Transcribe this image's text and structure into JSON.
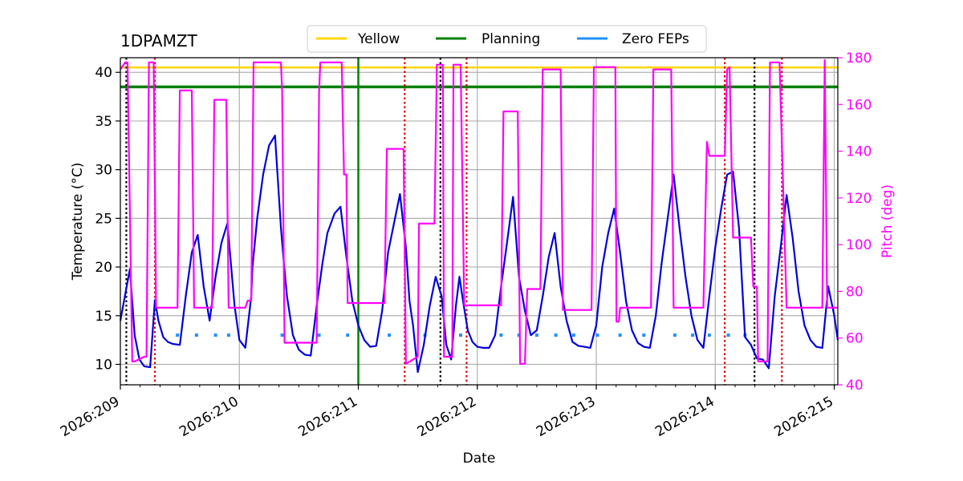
{
  "chart_data": {
    "type": "line",
    "title": "1DPAMZT",
    "xlabel": "Date",
    "ylabel": "Temperature ($^\\circ$C)",
    "ylabel_display": "Temperature (°C)",
    "y2label": "Pitch (deg)",
    "xlim": [
      209.0,
      215.03
    ],
    "ylim": [
      7.9,
      41.5
    ],
    "y2lim": [
      40,
      180
    ],
    "grid": true,
    "legend_placement": "top-center",
    "x_ticks": [
      209,
      210,
      211,
      212,
      213,
      214,
      215
    ],
    "x_tick_labels": [
      "2026:209",
      "2026:210",
      "2026:211",
      "2026:212",
      "2026:213",
      "2026:214",
      "2026:215"
    ],
    "y_ticks": [
      10,
      15,
      20,
      25,
      30,
      35,
      40
    ],
    "y_tick_labels": [
      "10",
      "15",
      "20",
      "25",
      "30",
      "35",
      "40"
    ],
    "y2_ticks": [
      40,
      60,
      80,
      100,
      120,
      140,
      160,
      180
    ],
    "y2_tick_labels": [
      "40",
      "60",
      "80",
      "100",
      "120",
      "140",
      "160",
      "180"
    ],
    "legend": [
      {
        "name": "Yellow",
        "color": "#ffd700"
      },
      {
        "name": "Planning",
        "color": "#008000"
      },
      {
        "name": "Zero FEPs",
        "color": "#1e90ff"
      }
    ],
    "colors": {
      "temperature": "#0000dd",
      "pitch": "#ff00ff",
      "yellow": "#ffd700",
      "planning": "#008000",
      "zero_feps": "#1e90ff",
      "red_vlines": "#dd0000",
      "black_vlines": "#000000",
      "grid": "#b0b0b0"
    },
    "yellow_limit": 40.5,
    "planning_limit": 38.5,
    "planning_vline_x": 211.0,
    "red_vlines_x": [
      209.29,
      211.39,
      211.91,
      214.08,
      214.56
    ],
    "black_vlines_x": [
      209.05,
      211.69,
      214.33
    ],
    "zero_feps_y": 13.0,
    "zero_feps_x": [
      209.48,
      209.64,
      209.8,
      209.91,
      210.36,
      210.67,
      210.91,
      211.26,
      211.56,
      211.86,
      212.2,
      212.35,
      212.5,
      212.66,
      212.81,
      213.01,
      213.2,
      213.4,
      213.66,
      213.81,
      213.95,
      214.11,
      214.25
    ],
    "series": [
      {
        "name": "",
        "axis": "left",
        "x": [
          209.0,
          209.08,
          209.12,
          209.16,
          209.2,
          209.25,
          209.29,
          209.32,
          209.36,
          209.4,
          209.44,
          209.5,
          209.55,
          209.6,
          209.65,
          209.7,
          209.75,
          209.8,
          209.85,
          209.9,
          209.96,
          210.0,
          210.05,
          210.1,
          210.11,
          210.15,
          210.2,
          210.25,
          210.3,
          210.35,
          210.37,
          210.4,
          210.45,
          210.5,
          210.55,
          210.6,
          210.65,
          210.7,
          210.74,
          210.8,
          210.85,
          210.9,
          210.95,
          210.97,
          211.0,
          211.05,
          211.1,
          211.15,
          211.2,
          211.25,
          211.3,
          211.35,
          211.4,
          211.43,
          211.46,
          211.5,
          211.55,
          211.6,
          211.65,
          211.7,
          211.74,
          211.78,
          211.82,
          211.85,
          211.88,
          211.92,
          211.96,
          212.0,
          212.05,
          212.1,
          212.15,
          212.2,
          212.25,
          212.3,
          212.35,
          212.4,
          212.45,
          212.5,
          212.55,
          212.6,
          212.65,
          212.7,
          212.75,
          212.8,
          212.85,
          212.9,
          212.95,
          213.0,
          213.05,
          213.1,
          213.15,
          213.2,
          213.25,
          213.3,
          213.35,
          213.4,
          213.45,
          213.5,
          213.55,
          213.6,
          213.65,
          213.7,
          213.75,
          213.8,
          213.85,
          213.9,
          213.95,
          214.0,
          214.05,
          214.1,
          214.15,
          214.2,
          214.25,
          214.3,
          214.35,
          214.4,
          214.45,
          214.5,
          214.55,
          214.6,
          214.65,
          214.7,
          214.75,
          214.8,
          214.85,
          214.9,
          214.95,
          215.0,
          215.03
        ],
        "values": [
          14.5,
          19.8,
          13.0,
          10.5,
          9.8,
          9.7,
          16.6,
          14.5,
          12.8,
          12.3,
          12.1,
          12.0,
          17.0,
          21.5,
          23.3,
          18.0,
          14.5,
          19.0,
          22.5,
          24.5,
          16.0,
          12.5,
          11.7,
          17.0,
          20.0,
          25.0,
          29.5,
          32.5,
          33.5,
          24.0,
          21.0,
          17.0,
          13.0,
          11.5,
          11.0,
          10.9,
          16.0,
          20.5,
          23.5,
          25.5,
          26.2,
          21.0,
          16.5,
          15.5,
          14.0,
          12.5,
          11.8,
          11.9,
          15.5,
          21.5,
          24.5,
          27.5,
          22.0,
          16.5,
          14.0,
          9.2,
          12.0,
          16.0,
          19.0,
          17.0,
          12.0,
          10.5,
          16.0,
          19.0,
          16.5,
          13.5,
          12.3,
          11.8,
          11.7,
          11.7,
          13.0,
          18.0,
          22.5,
          27.2,
          19.0,
          15.5,
          13.0,
          13.5,
          17.0,
          21.0,
          23.5,
          18.0,
          14.5,
          12.3,
          11.9,
          11.8,
          11.7,
          14.0,
          20.0,
          23.5,
          26.0,
          21.5,
          16.5,
          13.5,
          12.2,
          11.8,
          11.7,
          15.0,
          20.5,
          25.0,
          29.5,
          24.0,
          19.0,
          15.0,
          12.5,
          11.7,
          17.0,
          22.0,
          26.0,
          29.5,
          29.8,
          24.0,
          12.8,
          12.0,
          10.6,
          10.5,
          9.6,
          17.0,
          22.0,
          27.4,
          23.0,
          17.5,
          14.0,
          12.5,
          11.8,
          11.7,
          18.0,
          15.0,
          12.5
        ]
      },
      {
        "name": "",
        "axis": "right",
        "x": [
          209.0,
          209.04,
          209.06,
          209.1,
          209.12,
          209.2,
          209.22,
          209.24,
          209.28,
          209.3,
          209.48,
          209.5,
          209.6,
          209.62,
          209.77,
          209.79,
          209.89,
          209.91,
          210.05,
          210.07,
          210.1,
          210.12,
          210.13,
          210.35,
          210.36,
          210.38,
          210.65,
          210.67,
          210.68,
          210.86,
          210.88,
          210.9,
          210.91,
          211.22,
          211.24,
          211.38,
          211.4,
          211.5,
          211.51,
          211.64,
          211.66,
          211.71,
          211.72,
          211.79,
          211.8,
          211.86,
          211.89,
          211.93,
          212.2,
          212.22,
          212.34,
          212.36,
          212.4,
          212.42,
          212.53,
          212.55,
          212.7,
          212.72,
          212.96,
          212.98,
          213.16,
          213.17,
          213.19,
          213.2,
          213.46,
          213.48,
          213.63,
          213.65,
          213.9,
          213.93,
          213.95,
          214.08,
          214.1,
          214.12,
          214.15,
          214.3,
          214.32,
          214.35,
          214.36,
          214.44,
          214.46,
          214.54,
          214.6,
          214.9,
          214.92,
          214.94,
          215.03
        ],
        "values": [
          175,
          178,
          178,
          50,
          50,
          52,
          52,
          178,
          178,
          73,
          73,
          166,
          166,
          73,
          73,
          162,
          162,
          73,
          73,
          76,
          76,
          178,
          178,
          178,
          165,
          58,
          58,
          165,
          178,
          178,
          130,
          130,
          75,
          75,
          141,
          141,
          49,
          52,
          109,
          109,
          177,
          177,
          52,
          52,
          177,
          177,
          74,
          74,
          74,
          157,
          157,
          49,
          49,
          81,
          81,
          175,
          175,
          72,
          72,
          176,
          176,
          67,
          67,
          73,
          73,
          175,
          175,
          73,
          73,
          144,
          138,
          138,
          175,
          176,
          103,
          103,
          82,
          82,
          50,
          50,
          178,
          178,
          73,
          73,
          179,
          73,
          73
        ]
      }
    ]
  }
}
